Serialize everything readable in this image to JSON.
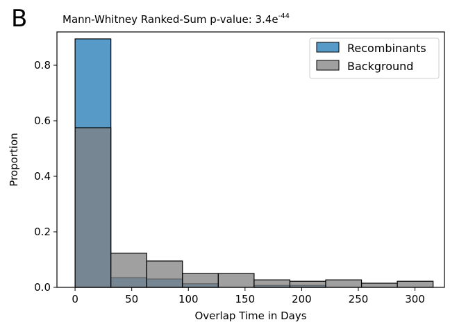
{
  "panel_letter": "B",
  "title_main": "Mann-Whitney Ranked-Sum p-value: 3.4e",
  "title_exponent": "-44",
  "colors": {
    "recombinants": "#1f77b4",
    "background": "#808080",
    "overlap": "#77878f"
  },
  "chart_data": {
    "type": "histogram",
    "xlabel": "Overlap Time in Days",
    "ylabel": "Proportion",
    "xlim": [
      -16,
      326
    ],
    "ylim": [
      0,
      0.92
    ],
    "xticks": [
      0,
      50,
      100,
      150,
      200,
      250,
      300
    ],
    "yticks": [
      0.0,
      0.2,
      0.4,
      0.6,
      0.8
    ],
    "ytick_labels": [
      "0.0",
      "0.2",
      "0.4",
      "0.6",
      "0.8"
    ],
    "bin_edges": [
      0,
      31.6,
      63.2,
      94.8,
      126.4,
      158,
      189.6,
      221.2,
      252.8,
      284.4,
      316
    ],
    "legend_position": "top-right",
    "series": [
      {
        "name": "Recombinants",
        "values": [
          0.895,
          0.035,
          0.03,
          0.013,
          0.0,
          0.007,
          0.007,
          0.0,
          0.0,
          0.0
        ]
      },
      {
        "name": "Background",
        "values": [
          0.575,
          0.123,
          0.095,
          0.05,
          0.05,
          0.027,
          0.022,
          0.027,
          0.015,
          0.022
        ]
      }
    ]
  }
}
